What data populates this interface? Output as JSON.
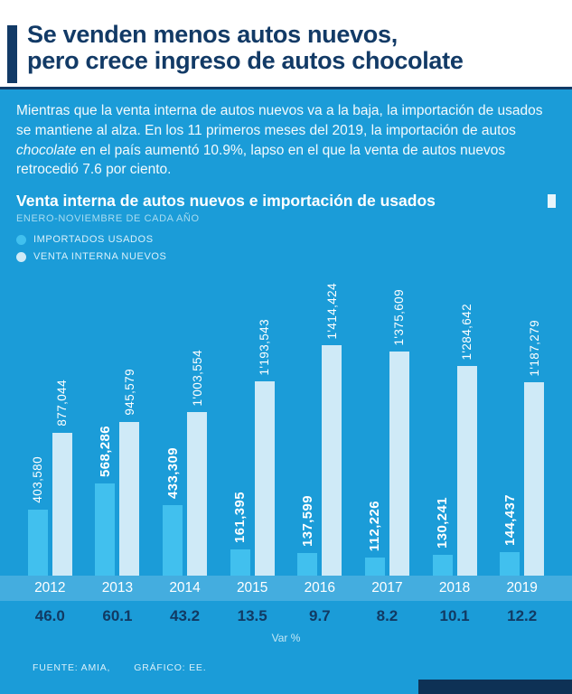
{
  "header": {
    "title_line1": "Se venden menos autos nuevos,",
    "title_line2": "pero crece ingreso de autos chocolate"
  },
  "intro": {
    "text_before_italic": "Mientras que la venta interna de autos nuevos va a la baja, la importación de usados se mantiene al alza. En los 11 primeros meses del 2019, la importación de autos ",
    "italic_word": "chocolate",
    "text_after_italic": " en el país aumentó 10.9%, lapso en el que la venta de autos nuevos retrocedió 7.6 por ciento."
  },
  "chart": {
    "title": "Venta interna de autos nuevos e importación de usados",
    "subtitle": "ENERO-NOVIEMBRE DE CADA AÑO",
    "var_axis_label": "Var %"
  },
  "chart_data": {
    "type": "bar",
    "title": "Venta interna de autos nuevos e importación de usados",
    "subtitle": "ENERO-NOVIEMBRE DE CADA AÑO",
    "categories": [
      "2012",
      "2013",
      "2014",
      "2015",
      "2016",
      "2017",
      "2018",
      "2019"
    ],
    "series": [
      {
        "name": "IMPORTADOS USADOS",
        "color": "#41c0ee",
        "values": [
          403580,
          568286,
          433309,
          161395,
          137599,
          112226,
          130241,
          144437
        ],
        "labels": [
          "403,580",
          "568,286",
          "433,309",
          "161,395",
          "137,599",
          "112,226",
          "130,241",
          "144,437"
        ],
        "bold": [
          false,
          true,
          true,
          true,
          true,
          true,
          true,
          true
        ]
      },
      {
        "name": "VENTA INTERNA NUEVOS",
        "color": "#cfeaf7",
        "values": [
          877044,
          945579,
          1003554,
          1193543,
          1414424,
          1375609,
          1284642,
          1187279
        ],
        "labels": [
          "877,044",
          "945,579",
          "1'003,554",
          "1'193,543",
          "1'414,424",
          "1'375,609",
          "1'284,642",
          "1'187,279"
        ],
        "bold": [
          false,
          false,
          false,
          false,
          false,
          false,
          false,
          false
        ]
      }
    ],
    "variation_pct": [
      "46.0",
      "60.1",
      "43.2",
      "13.5",
      "9.7",
      "8.2",
      "10.1",
      "12.2"
    ],
    "xlabel": "Var %",
    "ylabel": "",
    "ylim": [
      0,
      1414424
    ],
    "legend_position": "top-left",
    "grid": false
  },
  "footer": {
    "source": "FUENTE: AMIA,",
    "credit": "GRÁFICO: EE."
  },
  "colors": {
    "background": "#1b9cd8",
    "navy": "#123a66",
    "bar_usados": "#41c0ee",
    "bar_nuevos": "#cfeaf7"
  }
}
